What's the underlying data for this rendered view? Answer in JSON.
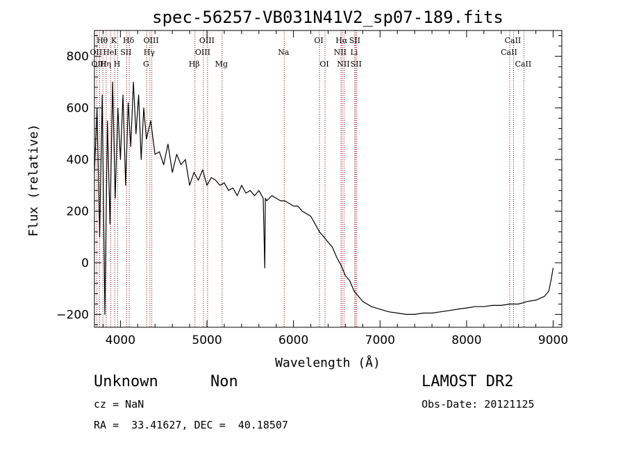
{
  "chart_data": {
    "type": "line",
    "title": "spec-56257-VB031N41V2_sp07-189.fits",
    "xlabel": "Wavelength (Å)",
    "ylabel": "Flux (relative)",
    "xlim": [
      3700,
      9100
    ],
    "ylim": [
      -250,
      900
    ],
    "xticks": [
      4000,
      5000,
      6000,
      7000,
      8000,
      9000
    ],
    "yticks": [
      -200,
      0,
      200,
      400,
      600,
      800
    ],
    "grid": false,
    "line_color": "#000000",
    "marker_color": "#8b0000",
    "series": [
      {
        "x": [
          3700,
          3730,
          3760,
          3790,
          3820,
          3850,
          3880,
          3910,
          3940,
          3970,
          4000,
          4030,
          4060,
          4090,
          4120,
          4150,
          4180,
          4210,
          4240,
          4270,
          4300,
          4350,
          4400,
          4450,
          4500,
          4550,
          4600,
          4650,
          4700,
          4750,
          4800,
          4850,
          4900,
          4950,
          5000,
          5050,
          5100,
          5150,
          5200,
          5250,
          5300,
          5350,
          5400,
          5450,
          5500,
          5550,
          5600,
          5650,
          5668,
          5675,
          5690,
          5750,
          5800,
          5850,
          5900,
          5950,
          6000,
          6050,
          6100,
          6150,
          6200,
          6250,
          6300,
          6350,
          6400,
          6450,
          6500,
          6550,
          6600,
          6650,
          6700,
          6750,
          6800,
          6850,
          6900,
          6950,
          7000,
          7100,
          7200,
          7300,
          7400,
          7500,
          7600,
          7700,
          7800,
          7900,
          8000,
          8100,
          8200,
          8300,
          8400,
          8500,
          8600,
          8700,
          8800,
          8900,
          8950,
          8980,
          9000
        ],
        "y": [
          350,
          600,
          100,
          650,
          -200,
          550,
          150,
          700,
          250,
          600,
          400,
          650,
          300,
          620,
          450,
          700,
          500,
          650,
          400,
          600,
          480,
          550,
          420,
          430,
          380,
          460,
          350,
          420,
          380,
          400,
          300,
          350,
          320,
          360,
          300,
          330,
          320,
          300,
          310,
          280,
          290,
          260,
          300,
          270,
          280,
          260,
          280,
          250,
          -20,
          250,
          240,
          260,
          250,
          240,
          240,
          230,
          220,
          220,
          200,
          190,
          180,
          150,
          120,
          100,
          80,
          60,
          20,
          -10,
          -50,
          -70,
          -110,
          -130,
          -150,
          -160,
          -170,
          -175,
          -180,
          -190,
          -195,
          -200,
          -200,
          -195,
          -195,
          -190,
          -185,
          -180,
          -175,
          -170,
          -170,
          -165,
          -165,
          -160,
          -160,
          -150,
          -145,
          -130,
          -110,
          -60,
          -20
        ]
      }
    ],
    "lines": [
      {
        "label": "Hθ",
        "x": 3798,
        "row": 0
      },
      {
        "label": "OII",
        "x": 3727,
        "row": 1
      },
      {
        "label": "OIII",
        "x": 3760,
        "row": 2
      },
      {
        "label": "K",
        "x": 3934,
        "row": 0
      },
      {
        "label": "HeI",
        "x": 3889,
        "row": 1
      },
      {
        "label": "Hη",
        "x": 3835,
        "row": 2
      },
      {
        "label": "SII",
        "x": 4072,
        "row": 1
      },
      {
        "label": "H",
        "x": 3969,
        "row": 2
      },
      {
        "label": "Hδ",
        "x": 4102,
        "row": 0
      },
      {
        "label": "OIII",
        "x": 4363,
        "row": 0
      },
      {
        "label": "Hγ",
        "x": 4341,
        "row": 1
      },
      {
        "label": "G",
        "x": 4305,
        "row": 2
      },
      {
        "label": "OIII",
        "x": 5007,
        "row": 0
      },
      {
        "label": "OIII",
        "x": 4959,
        "row": 1
      },
      {
        "label": "Hβ",
        "x": 4861,
        "row": 2
      },
      {
        "label": "Mg",
        "x": 5175,
        "row": 2
      },
      {
        "label": "Na",
        "x": 5893,
        "row": 1
      },
      {
        "label": "OI",
        "x": 6300,
        "row": 0
      },
      {
        "label": "OI",
        "x": 6364,
        "row": 2
      },
      {
        "label": "Hα",
        "x": 6563,
        "row": 0
      },
      {
        "label": "SII",
        "x": 6716,
        "row": 0
      },
      {
        "label": "NII",
        "x": 6548,
        "row": 1
      },
      {
        "label": "Li",
        "x": 6708,
        "row": 1
      },
      {
        "label": "NII",
        "x": 6584,
        "row": 2
      },
      {
        "label": "SII",
        "x": 6731,
        "row": 2
      },
      {
        "label": "CaII",
        "x": 8542,
        "row": 0
      },
      {
        "label": "CaII",
        "x": 8498,
        "row": 1
      },
      {
        "label": "CaII",
        "x": 8662,
        "row": 2
      }
    ]
  },
  "info": {
    "class": "Unknown",
    "subclass": "Non",
    "survey": "LAMOST DR2",
    "cz": "cz = NaN",
    "obs_date": "Obs-Date: 20121125",
    "coords": "RA =  33.41627, DEC =  40.18507"
  }
}
